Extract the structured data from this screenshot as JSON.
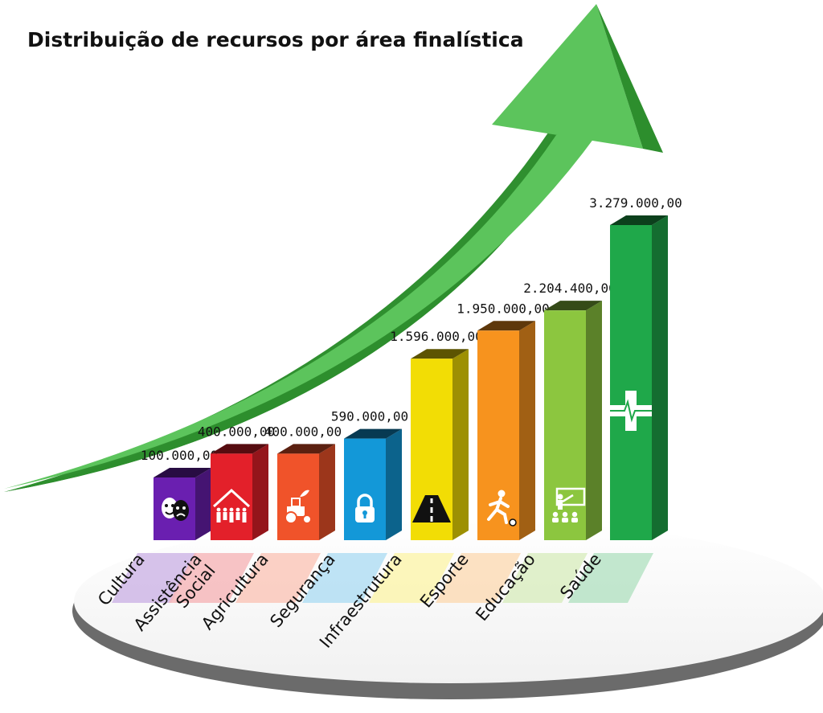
{
  "chart_data": {
    "type": "bar",
    "title": "Distribuição de recursos por área finalística",
    "categories": [
      "Cultura",
      "Assistência Social",
      "Agricultura",
      "Segurança",
      "Infraestrutura",
      "Esporte",
      "Educação",
      "Saúde"
    ],
    "category_lines": [
      [
        "Cultura"
      ],
      [
        "Assistência",
        "Social"
      ],
      [
        "Agricultura"
      ],
      [
        "Segurança"
      ],
      [
        "Infraestrutura"
      ],
      [
        "Esporte"
      ],
      [
        "Educação"
      ],
      [
        "Saúde"
      ]
    ],
    "values": [
      100000,
      400000,
      400000,
      590000,
      1596000,
      1950000,
      2204400,
      3279000
    ],
    "value_labels": [
      "100.000,00",
      "400.000,00",
      "400.000,00",
      "590.000,00",
      "1.596.000,00",
      "1.950.000,00",
      "2.204.400,00",
      "3.279.000,00"
    ],
    "colors": [
      "#6a1fb0",
      "#e3202a",
      "#f0532a",
      "#1398d8",
      "#f2dd05",
      "#f7931e",
      "#8cc63f",
      "#1fa84a"
    ],
    "icons": [
      "theater-masks-icon",
      "family-home-icon",
      "tractor-icon",
      "padlock-icon",
      "road-icon",
      "runner-icon",
      "teacher-board-icon",
      "health-cross-icon"
    ],
    "legend": "none",
    "grid": false
  }
}
